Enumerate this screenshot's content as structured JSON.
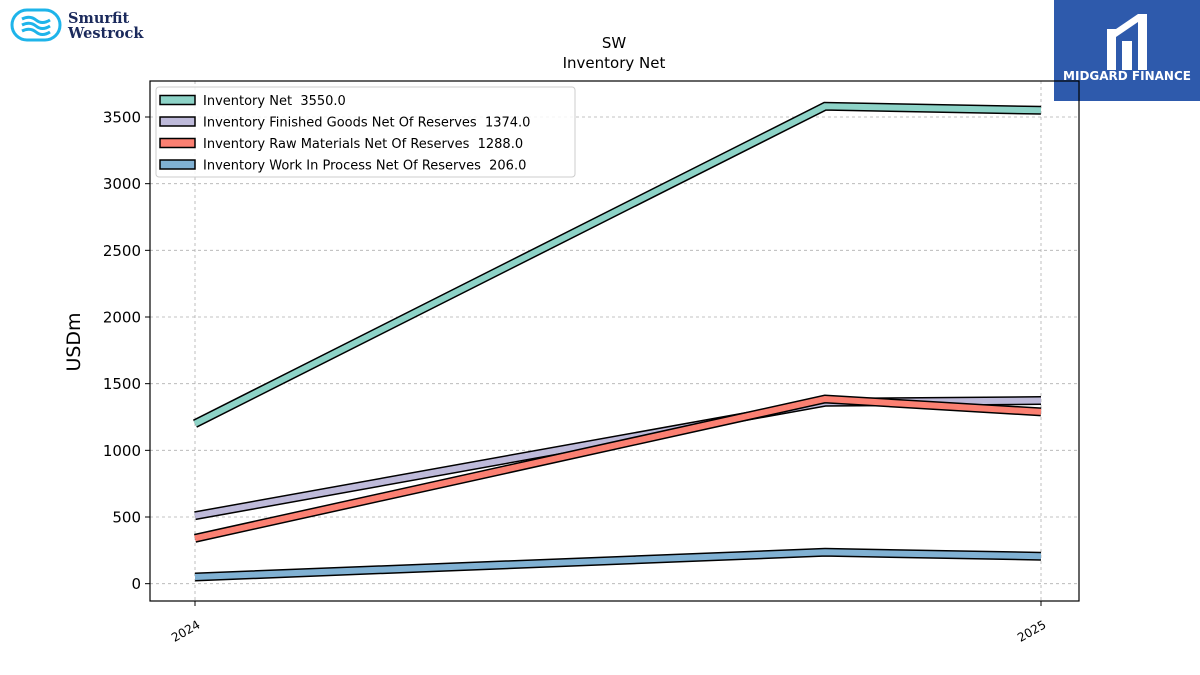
{
  "logos": {
    "left_text": [
      "Smurfit",
      "Westrock"
    ],
    "right_text": "MIDGARD FINANCE"
  },
  "colors": {
    "inventory_net": "#8dd3c7",
    "finished_goods": "#bebada",
    "raw_materials": "#fb8072",
    "work_in_process": "#80b1d3"
  },
  "chart_data": {
    "type": "line",
    "title": "SW",
    "subtitle": "Inventory Net",
    "xlabel": "",
    "ylabel": "USDm",
    "x_ticks": [
      "2024",
      "2025"
    ],
    "x": [
      "2024-01",
      "2024-10",
      "2025-01"
    ],
    "ylim": [
      -130,
      3770
    ],
    "y_ticks": [
      0,
      500,
      1000,
      1500,
      2000,
      2500,
      3000,
      3500
    ],
    "grid": true,
    "legend_position": "top-left",
    "series": [
      {
        "name": "Inventory Net",
        "legend_value": "3550.0",
        "color": "#8dd3c7",
        "values": [
          1200,
          3580,
          3550
        ]
      },
      {
        "name": "Inventory Finished Goods Net Of Reserves",
        "legend_value": "1374.0",
        "color": "#bebada",
        "values": [
          510,
          1360,
          1374
        ]
      },
      {
        "name": "Inventory Raw Materials Net Of Reserves",
        "legend_value": "1288.0",
        "color": "#fb8072",
        "values": [
          340,
          1385,
          1288
        ]
      },
      {
        "name": "Inventory Work In Process Net Of Reserves",
        "legend_value": "206.0",
        "color": "#80b1d3",
        "values": [
          50,
          235,
          206
        ]
      }
    ]
  }
}
